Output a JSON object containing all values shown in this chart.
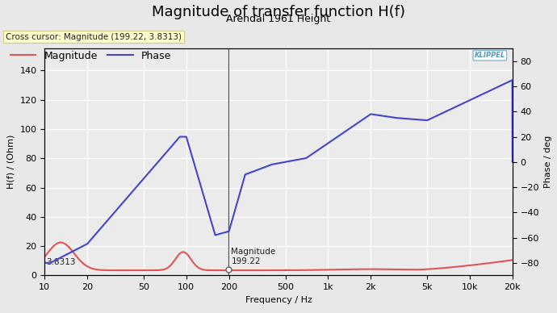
{
  "title": "Magnitude of transfer function H(f)",
  "subtitle": "Arendal 1961 Height",
  "xlabel": "Frequency / Hz",
  "ylabel_left": "H(f) / (Ohm)",
  "ylabel_right": "Phase / deg",
  "cross_cursor_label": "Cross cursor: Magnitude (199.22, 3.8313)",
  "legend_magnitude": "Magnitude",
  "legend_phase": "Phase",
  "cursor_x": 199.22,
  "cursor_y_mag": 3.8313,
  "annotation_mag_label": "Magnitude\n199.22",
  "annotation_left_label": "3.8313",
  "ylim_left": [
    0,
    155
  ],
  "ylim_right": [
    -90,
    90
  ],
  "yticks_left": [
    0,
    20,
    40,
    60,
    80,
    100,
    120,
    140
  ],
  "yticks_right": [
    -80,
    -60,
    -40,
    -20,
    0,
    20,
    40,
    60,
    80
  ],
  "bg_color": "#e8e8e8",
  "plot_bg_color": "#ebebeb",
  "grid_color": "#ffffff",
  "mag_color": "#e05555",
  "phase_color": "#4444cc",
  "cursor_line_color": "#505050",
  "title_fontsize": 13,
  "subtitle_fontsize": 9,
  "axis_label_fontsize": 8,
  "tick_fontsize": 8,
  "legend_fontsize": 9,
  "klippel_text": "KLIPPEL",
  "xticks": [
    10,
    20,
    50,
    100,
    200,
    500,
    1000,
    2000,
    5000,
    10000,
    20000
  ],
  "xtick_labels": [
    "10",
    "20",
    "50",
    "100",
    "200",
    "500",
    "1k",
    "2k",
    "5k",
    "10k",
    "20k"
  ]
}
